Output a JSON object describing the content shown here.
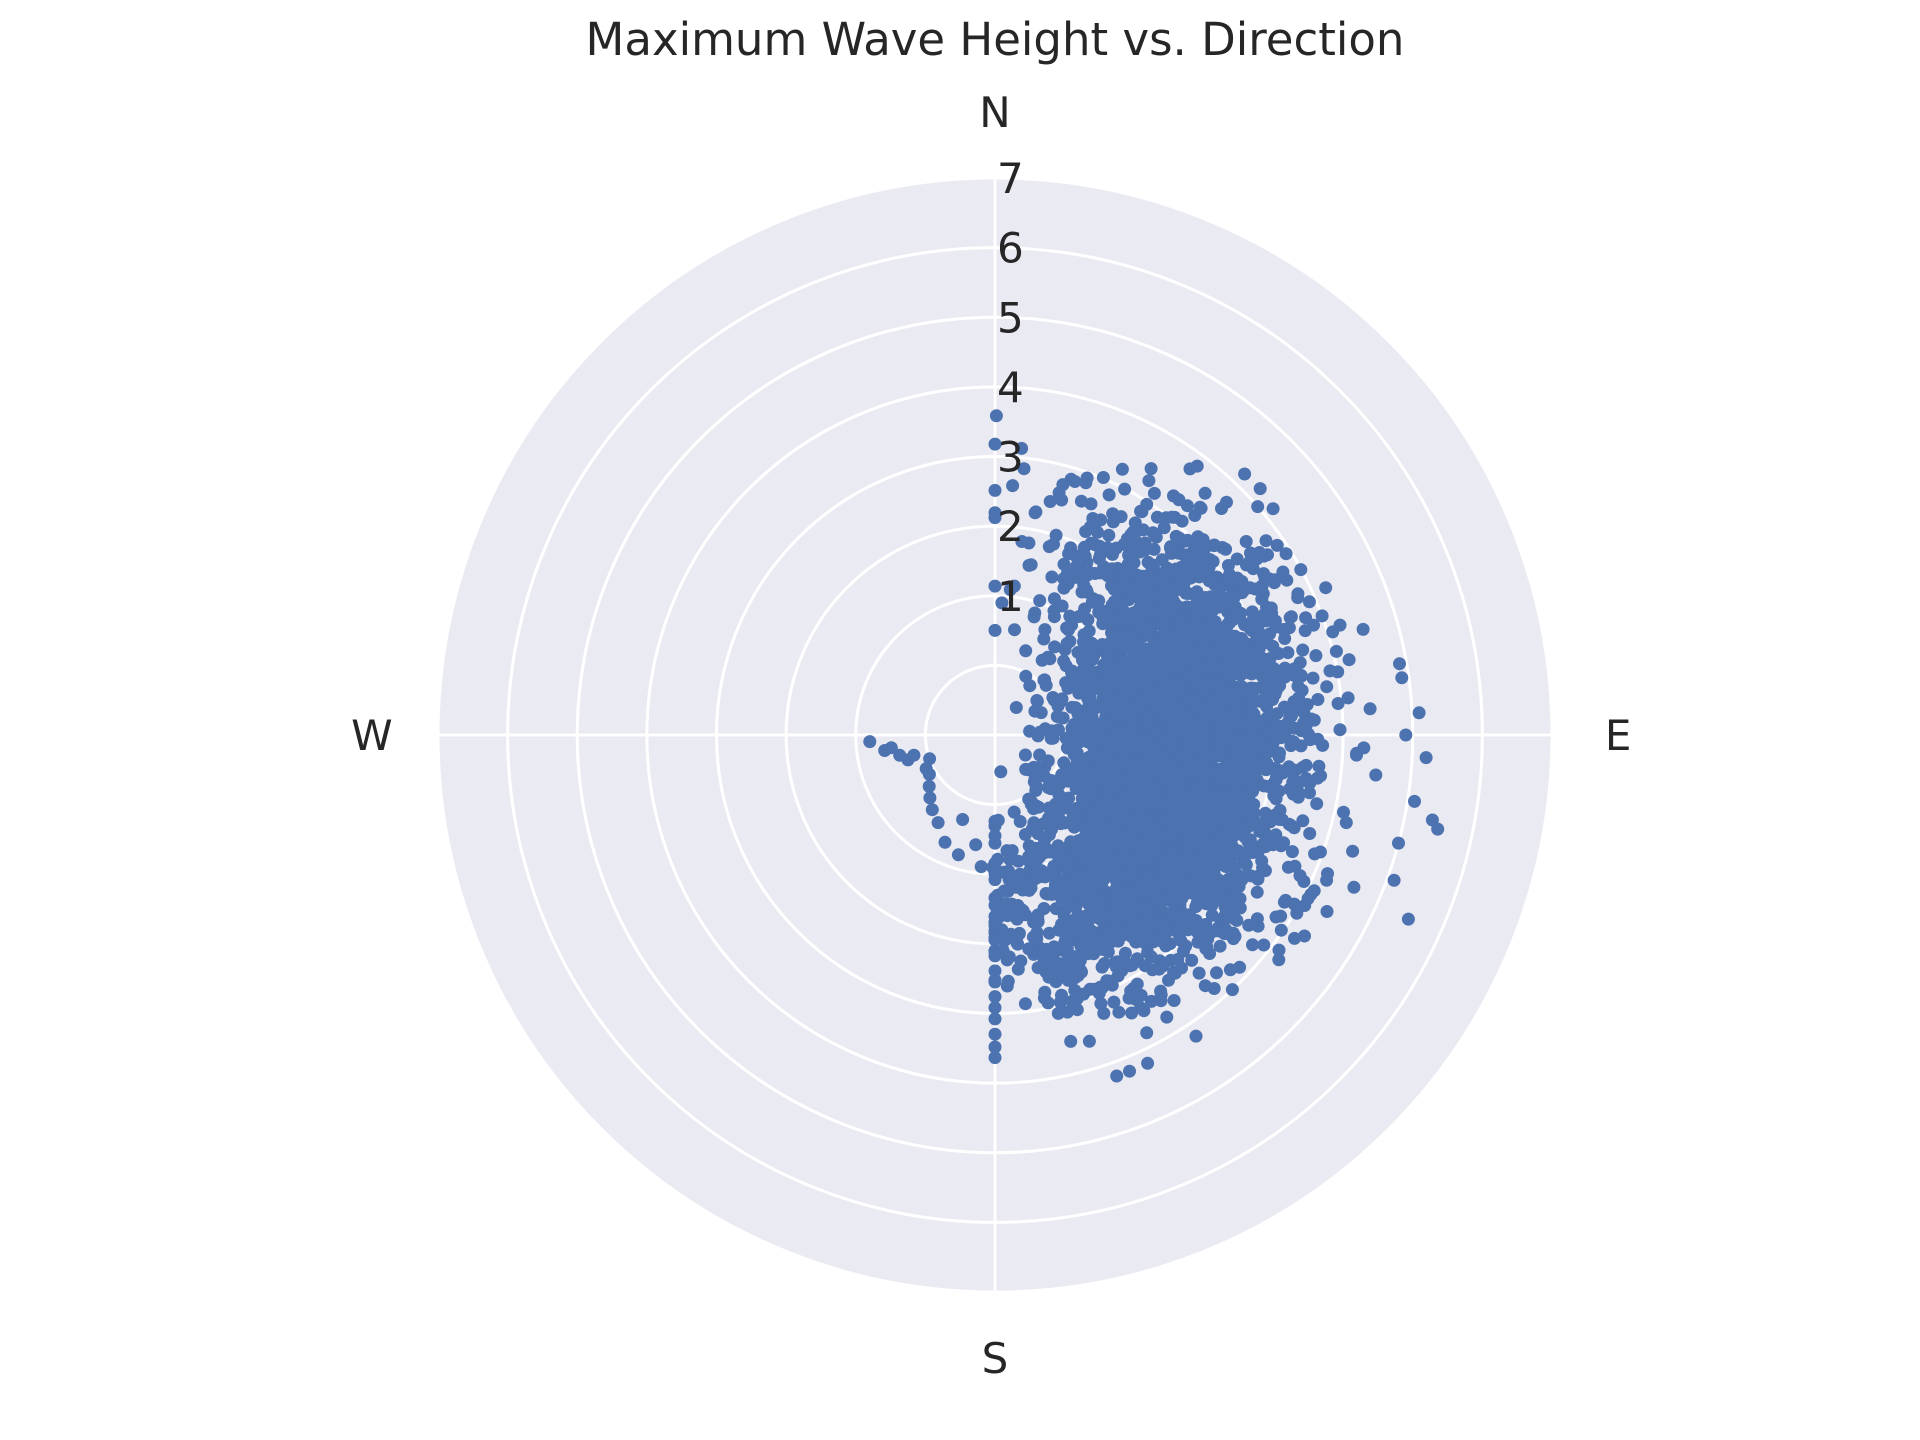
{
  "chart_data": {
    "type": "scatter",
    "projection": "polar",
    "title": "Maximum Wave Height vs. Direction",
    "theta_direction": "clockwise",
    "theta_zero": "N",
    "direction_labels": [
      "N",
      "E",
      "S",
      "W"
    ],
    "rlim": [
      -1,
      7
    ],
    "r_ticks": [
      1,
      2,
      3,
      4,
      5,
      6,
      7
    ],
    "grid": true,
    "color": "#4c72b0",
    "background": "#eaeaf2",
    "series": [
      {
        "points": [
          {
            "theta": 45,
            "r": 3.6
          },
          {
            "theta": 41,
            "r": 3.6
          },
          {
            "theta": 42,
            "r": 3.4
          },
          {
            "theta": 40,
            "r": 3.3
          },
          {
            "theta": 49,
            "r": 4.0
          },
          {
            "theta": 47,
            "r": 3.0
          },
          {
            "theta": 54,
            "r": 3.3
          },
          {
            "theta": 59,
            "r": 3.5
          },
          {
            "theta": 29,
            "r": 2.1
          },
          {
            "theta": 10,
            "r": 1.8
          },
          {
            "theta": 24,
            "r": 2.2
          },
          {
            "theta": 34,
            "r": 2.4
          },
          {
            "theta": 65,
            "r": 3.8
          },
          {
            "theta": 70,
            "r": 3.5
          },
          {
            "theta": 63,
            "r": 3.3
          },
          {
            "theta": 80,
            "r": 4.9
          },
          {
            "theta": 82,
            "r": 4.9
          },
          {
            "theta": 87,
            "r": 5.1
          },
          {
            "theta": 90,
            "r": 4.9
          },
          {
            "theta": 93,
            "r": 5.2
          },
          {
            "theta": 99,
            "r": 5.1
          },
          {
            "theta": 101,
            "r": 5.4
          },
          {
            "theta": 102,
            "r": 5.5
          },
          {
            "theta": 105,
            "r": 5.0
          },
          {
            "theta": 110,
            "r": 5.1
          },
          {
            "theta": 114,
            "r": 5.5
          },
          {
            "theta": 113,
            "r": 4.6
          },
          {
            "theta": 118,
            "r": 4.4
          },
          {
            "theta": 123,
            "r": 4.3
          },
          {
            "theta": 128,
            "r": 3.9
          },
          {
            "theta": 137,
            "r": 4.0
          },
          {
            "theta": 140,
            "r": 3.7
          },
          {
            "theta": 146,
            "r": 3.6
          },
          {
            "theta": 152,
            "r": 3.3
          },
          {
            "theta": 158,
            "r": 3.0
          },
          {
            "theta": 153,
            "r": 3.8
          },
          {
            "theta": 148,
            "r": 3.5
          },
          {
            "theta": 160,
            "r": 2.6
          },
          {
            "theta": 166,
            "r": 2.5
          },
          {
            "theta": 170,
            "r": 2.2
          },
          {
            "theta": 174,
            "r": 2.0
          },
          {
            "theta": 178,
            "r": 1.8
          },
          {
            "theta": 186,
            "r": 0.9
          },
          {
            "theta": 197,
            "r": 0.8
          },
          {
            "theta": 205,
            "r": 0.7
          },
          {
            "theta": 213,
            "r": 0.5
          },
          {
            "theta": 239,
            "r": 0.1
          },
          {
            "theta": 254,
            "r": 0.3
          },
          {
            "theta": 258,
            "r": 0.4
          },
          {
            "theta": 263,
            "r": 0.5
          },
          {
            "theta": 267,
            "r": 0.8
          },
          {
            "theta": 262,
            "r": 0.6
          },
          {
            "theta": 256,
            "r": 0.2
          },
          {
            "theta": 250,
            "r": 0.0
          },
          {
            "theta": 244,
            "r": 0.1
          },
          {
            "theta": 232,
            "r": 0.2
          },
          {
            "theta": 226,
            "r": 0.3
          },
          {
            "theta": 220,
            "r": 0.4
          },
          {
            "theta": 201,
            "r": 0.3
          },
          {
            "theta": 190,
            "r": 0.6
          },
          {
            "theta": 181,
            "r": 0.9
          },
          {
            "theta": 179,
            "r": 1.3
          },
          {
            "theta": 176,
            "r": 1.6
          },
          {
            "theta": 168,
            "r": 1.9
          },
          {
            "theta": 162,
            "r": 2.2
          },
          {
            "theta": 155,
            "r": 2.4
          },
          {
            "theta": 150,
            "r": 2.8
          },
          {
            "theta": 144,
            "r": 3.1
          },
          {
            "theta": 135,
            "r": 3.3
          },
          {
            "theta": 130,
            "r": 3.5
          },
          {
            "theta": 125,
            "r": 3.6
          },
          {
            "theta": 120,
            "r": 3.8
          },
          {
            "theta": 116,
            "r": 4.1
          },
          {
            "theta": 108,
            "r": 4.4
          },
          {
            "theta": 104,
            "r": 4.2
          },
          {
            "theta": 96,
            "r": 4.5
          },
          {
            "theta": 92,
            "r": 4.3
          },
          {
            "theta": 86,
            "r": 4.4
          },
          {
            "theta": 84,
            "r": 4.1
          },
          {
            "theta": 78,
            "r": 4.2
          },
          {
            "theta": 74,
            "r": 4.5
          },
          {
            "theta": 70,
            "r": 4.0
          },
          {
            "theta": 66,
            "r": 4.2
          },
          {
            "theta": 61,
            "r": 3.6
          },
          {
            "theta": 57,
            "r": 3.0
          },
          {
            "theta": 52,
            "r": 2.9
          },
          {
            "theta": 48,
            "r": 2.6
          },
          {
            "theta": 43,
            "r": 2.7
          },
          {
            "theta": 38,
            "r": 2.5
          },
          {
            "theta": 33,
            "r": 2.2
          },
          {
            "theta": 28,
            "r": 2.6
          },
          {
            "theta": 22,
            "r": 1.9
          },
          {
            "theta": 17,
            "r": 2.0
          },
          {
            "theta": 12,
            "r": 1.5
          },
          {
            "theta": 6,
            "r": 1.1
          },
          {
            "theta": 3,
            "r": 0.9
          }
        ],
        "dense_cloud": {
          "theta_range": [
            0,
            180
          ],
          "theta_peak": 110,
          "r_mean": 1.9,
          "r_sd": 0.8,
          "approx_count": 4000
        }
      }
    ]
  }
}
